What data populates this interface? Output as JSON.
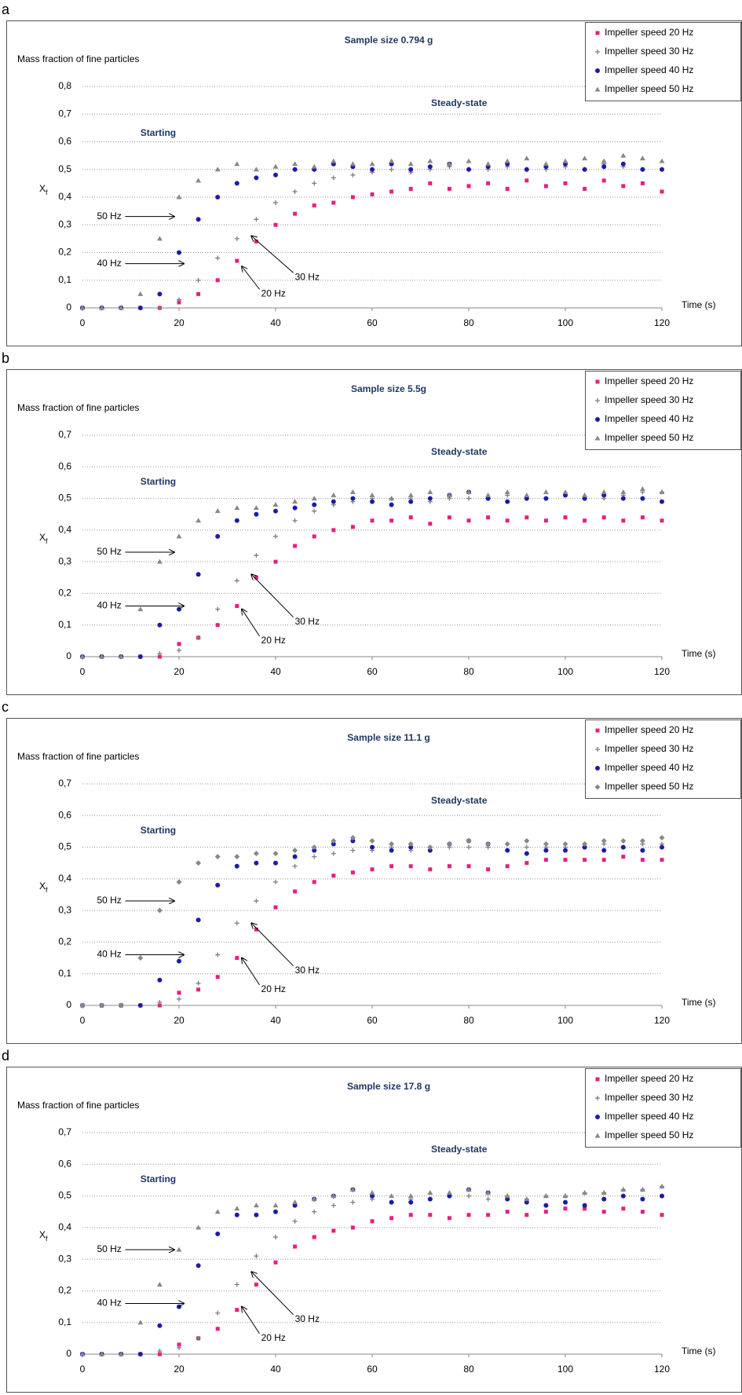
{
  "chart_data": [
    {
      "type": "scatter",
      "panel": "a",
      "title": "Sample size 0.794 g",
      "y_label": "Mass fraction of fine particles",
      "y_symbol": "X",
      "y_symbol_sub": "f",
      "x_label": "Time (s)",
      "annotations": [
        "Starting",
        "Steady-state",
        "50 Hz",
        "40 Hz",
        "30 Hz",
        "20 Hz"
      ],
      "xlim": [
        0,
        120
      ],
      "ylim": [
        0,
        0.8
      ],
      "xticks": [
        0,
        20,
        40,
        60,
        80,
        100,
        120
      ],
      "yticks": [
        0,
        {
          "value": 0.1,
          "label": "0,1"
        },
        {
          "value": 0.2,
          "label": "0,2"
        },
        {
          "value": 0.3,
          "label": "0,3"
        },
        {
          "value": 0.4,
          "label": "0,4"
        },
        {
          "value": 0.5,
          "label": "0,5"
        },
        {
          "value": 0.6,
          "label": "0,6"
        },
        {
          "value": 0.7,
          "label": "0,7"
        },
        {
          "value": 0.8,
          "label": "0,8"
        }
      ],
      "grid": true,
      "legend": "top-right",
      "x": [
        0,
        4,
        8,
        12,
        16,
        20,
        24,
        28,
        32,
        36,
        40,
        44,
        48,
        52,
        56,
        60,
        64,
        68,
        72,
        76,
        80,
        84,
        88,
        92,
        96,
        100,
        104,
        108,
        112,
        116,
        120
      ],
      "series": [
        {
          "name": "Impeller speed 20 Hz",
          "color": "#e3207f",
          "marker": "square",
          "values": [
            0,
            0,
            0,
            0,
            0,
            0.02,
            0.05,
            0.1,
            0.17,
            0.24,
            0.3,
            0.34,
            0.37,
            0.38,
            0.4,
            0.41,
            0.42,
            0.43,
            0.45,
            0.43,
            0.44,
            0.45,
            0.43,
            0.46,
            0.44,
            0.45,
            0.43,
            0.46,
            0.44,
            0.45,
            0.42
          ]
        },
        {
          "name": "Impeller speed 30 Hz",
          "color": "#7f7f7f",
          "marker": "plus",
          "values": [
            0,
            0,
            0,
            0,
            0,
            0.03,
            0.1,
            0.18,
            0.25,
            0.32,
            0.38,
            0.42,
            0.45,
            0.47,
            0.48,
            0.49,
            0.5,
            0.49,
            0.5,
            0.51,
            0.5,
            0.5,
            0.51,
            0.5,
            0.5,
            0.51,
            0.5,
            0.52,
            0.51,
            0.5,
            0.5
          ]
        },
        {
          "name": "Impeller speed 40 Hz",
          "color": "#1c1cab",
          "marker": "circle",
          "values": [
            0,
            0,
            0,
            0,
            0.05,
            0.2,
            0.32,
            0.4,
            0.45,
            0.47,
            0.48,
            0.5,
            0.5,
            0.52,
            0.51,
            0.5,
            0.52,
            0.5,
            0.51,
            0.52,
            0.5,
            0.51,
            0.52,
            0.5,
            0.51,
            0.52,
            0.5,
            0.51,
            0.52,
            0.5,
            0.5
          ]
        },
        {
          "name": "Impeller speed 50 Hz",
          "color": "#888888",
          "marker": "triangle",
          "values": [
            0,
            0,
            0,
            0.05,
            0.25,
            0.4,
            0.46,
            0.5,
            0.52,
            0.5,
            0.51,
            0.52,
            0.51,
            0.53,
            0.52,
            0.52,
            0.53,
            0.52,
            0.53,
            0.52,
            0.53,
            0.52,
            0.53,
            0.54,
            0.52,
            0.53,
            0.54,
            0.53,
            0.55,
            0.54,
            0.53
          ]
        }
      ]
    },
    {
      "type": "scatter",
      "panel": "b",
      "title": "Sample size 5.5g",
      "y_label": "Mass fraction of fine particles",
      "y_symbol": "X",
      "y_symbol_sub": "f",
      "x_label": "Time (s)",
      "annotations": [
        "Starting",
        "Steady-state",
        "50 Hz",
        "40 Hz",
        "30 Hz",
        "20 Hz"
      ],
      "xlim": [
        0,
        120
      ],
      "ylim": [
        0,
        0.7
      ],
      "xticks": [
        0,
        20,
        40,
        60,
        80,
        100,
        120
      ],
      "yticks": [
        0,
        {
          "value": 0.1,
          "label": "0,1"
        },
        {
          "value": 0.2,
          "label": "0,2"
        },
        {
          "value": 0.3,
          "label": "0,3"
        },
        {
          "value": 0.4,
          "label": "0,4"
        },
        {
          "value": 0.5,
          "label": "0,5"
        },
        {
          "value": 0.6,
          "label": "0,6"
        },
        {
          "value": 0.7,
          "label": "0,7"
        }
      ],
      "grid": true,
      "legend": "top-right",
      "x": [
        0,
        4,
        8,
        12,
        16,
        20,
        24,
        28,
        32,
        36,
        40,
        44,
        48,
        52,
        56,
        60,
        64,
        68,
        72,
        76,
        80,
        84,
        88,
        92,
        96,
        100,
        104,
        108,
        112,
        116,
        120
      ],
      "series": [
        {
          "name": "Impeller speed 20 Hz",
          "color": "#e3207f",
          "marker": "square",
          "values": [
            0,
            0,
            0,
            0,
            0,
            0.04,
            0.06,
            0.1,
            0.16,
            0.25,
            0.3,
            0.35,
            0.38,
            0.4,
            0.41,
            0.43,
            0.43,
            0.44,
            0.42,
            0.44,
            0.43,
            0.44,
            0.43,
            0.44,
            0.43,
            0.44,
            0.43,
            0.44,
            0.43,
            0.44,
            0.43
          ]
        },
        {
          "name": "Impeller speed 30 Hz",
          "color": "#7f7f7f",
          "marker": "plus",
          "values": [
            0,
            0,
            0,
            0,
            0.01,
            0.02,
            0.06,
            0.15,
            0.24,
            0.32,
            0.38,
            0.43,
            0.46,
            0.48,
            0.49,
            0.5,
            0.5,
            0.5,
            0.49,
            0.5,
            0.5,
            0.5,
            0.51,
            0.5,
            0.5,
            0.51,
            0.5,
            0.5,
            0.51,
            0.52,
            0.52
          ]
        },
        {
          "name": "Impeller speed 40 Hz",
          "color": "#1c1cab",
          "marker": "circle",
          "values": [
            0,
            0,
            0,
            0,
            0.1,
            0.15,
            0.26,
            0.38,
            0.43,
            0.45,
            0.46,
            0.47,
            0.48,
            0.49,
            0.5,
            0.49,
            0.48,
            0.49,
            0.5,
            0.51,
            0.52,
            0.5,
            0.49,
            0.5,
            0.5,
            0.51,
            0.5,
            0.51,
            0.5,
            0.5,
            0.49
          ]
        },
        {
          "name": "Impeller speed 50 Hz",
          "color": "#888888",
          "marker": "triangle",
          "values": [
            0,
            0,
            0,
            0.15,
            0.3,
            0.38,
            0.43,
            0.46,
            0.47,
            0.47,
            0.48,
            0.49,
            0.5,
            0.51,
            0.52,
            0.51,
            0.5,
            0.51,
            0.52,
            0.51,
            0.52,
            0.51,
            0.52,
            0.51,
            0.52,
            0.52,
            0.51,
            0.52,
            0.52,
            0.53,
            0.52
          ]
        }
      ]
    },
    {
      "type": "scatter",
      "panel": "c",
      "title": "Sample size 11.1 g",
      "y_label": "Mass fraction of fine particles",
      "y_symbol": "X",
      "y_symbol_sub": "f",
      "x_label": "Time (s)",
      "annotations": [
        "Starting",
        "Steady-state",
        "50 Hz",
        "40 Hz",
        "30 Hz",
        "20 Hz"
      ],
      "xlim": [
        0,
        120
      ],
      "ylim": [
        0,
        0.7
      ],
      "xticks": [
        0,
        20,
        40,
        60,
        80,
        100,
        120
      ],
      "yticks": [
        0,
        {
          "value": 0.1,
          "label": "0,1"
        },
        {
          "value": 0.2,
          "label": "0,2"
        },
        {
          "value": 0.3,
          "label": "0,3"
        },
        {
          "value": 0.4,
          "label": "0,4"
        },
        {
          "value": 0.5,
          "label": "0,5"
        },
        {
          "value": 0.6,
          "label": "0,6"
        },
        {
          "value": 0.7,
          "label": "0,7"
        }
      ],
      "grid": true,
      "legend": "top-right",
      "x": [
        0,
        4,
        8,
        12,
        16,
        20,
        24,
        28,
        32,
        36,
        40,
        44,
        48,
        52,
        56,
        60,
        64,
        68,
        72,
        76,
        80,
        84,
        88,
        92,
        96,
        100,
        104,
        108,
        112,
        116,
        120
      ],
      "series": [
        {
          "name": "Impeller speed 20 Hz",
          "color": "#e3207f",
          "marker": "square",
          "values": [
            0,
            0,
            0,
            0,
            0,
            0.04,
            0.05,
            0.09,
            0.15,
            0.24,
            0.31,
            0.36,
            0.39,
            0.41,
            0.42,
            0.43,
            0.44,
            0.44,
            0.43,
            0.44,
            0.44,
            0.43,
            0.44,
            0.45,
            0.46,
            0.46,
            0.46,
            0.46,
            0.47,
            0.46,
            0.46
          ]
        },
        {
          "name": "Impeller speed 30 Hz",
          "color": "#7f7f7f",
          "marker": "plus",
          "values": [
            0,
            0,
            0,
            0,
            0.01,
            0.02,
            0.07,
            0.16,
            0.26,
            0.33,
            0.39,
            0.44,
            0.47,
            0.48,
            0.49,
            0.49,
            0.5,
            0.49,
            0.5,
            0.5,
            0.5,
            0.5,
            0.49,
            0.5,
            0.5,
            0.5,
            0.5,
            0.51,
            0.5,
            0.51,
            0.51
          ]
        },
        {
          "name": "Impeller speed 40 Hz",
          "color": "#1c1cab",
          "marker": "circle",
          "values": [
            0,
            0,
            0,
            0,
            0.08,
            0.14,
            0.27,
            0.38,
            0.44,
            0.45,
            0.45,
            0.47,
            0.49,
            0.51,
            0.52,
            0.5,
            0.49,
            0.5,
            0.49,
            0.51,
            0.52,
            0.51,
            0.49,
            0.48,
            0.49,
            0.49,
            0.5,
            0.49,
            0.5,
            0.49,
            0.5
          ]
        },
        {
          "name": "Impeller speed 50 Hz",
          "color": "#888888",
          "marker": "diamond",
          "values": [
            0,
            0,
            0,
            0.15,
            0.3,
            0.39,
            0.45,
            0.47,
            0.47,
            0.48,
            0.48,
            0.49,
            0.5,
            0.52,
            0.53,
            0.52,
            0.51,
            0.51,
            0.5,
            0.51,
            0.52,
            0.51,
            0.51,
            0.52,
            0.51,
            0.51,
            0.51,
            0.52,
            0.52,
            0.52,
            0.53
          ]
        }
      ]
    },
    {
      "type": "scatter",
      "panel": "d",
      "title": "Sample size 17.8 g",
      "y_label": "Mass fraction of fine particles",
      "y_symbol": "X",
      "y_symbol_sub": "f",
      "x_label": "Time (s)",
      "annotations": [
        "Starting",
        "Steady-state",
        "50 Hz",
        "40 Hz",
        "30 Hz",
        "20 Hz"
      ],
      "xlim": [
        0,
        120
      ],
      "ylim": [
        0,
        0.7
      ],
      "xticks": [
        0,
        20,
        40,
        60,
        80,
        100,
        120
      ],
      "yticks": [
        0,
        {
          "value": 0.1,
          "label": "0,1"
        },
        {
          "value": 0.2,
          "label": "0,2"
        },
        {
          "value": 0.3,
          "label": "0,3"
        },
        {
          "value": 0.4,
          "label": "0,4"
        },
        {
          "value": 0.5,
          "label": "0,5"
        },
        {
          "value": 0.6,
          "label": "0,6"
        },
        {
          "value": 0.7,
          "label": "0,7"
        }
      ],
      "grid": true,
      "legend": "top-right",
      "x": [
        0,
        4,
        8,
        12,
        16,
        20,
        24,
        28,
        32,
        36,
        40,
        44,
        48,
        52,
        56,
        60,
        64,
        68,
        72,
        76,
        80,
        84,
        88,
        92,
        96,
        100,
        104,
        108,
        112,
        116,
        120
      ],
      "series": [
        {
          "name": "Impeller speed 20 Hz",
          "color": "#e3207f",
          "marker": "square",
          "values": [
            0,
            0,
            0,
            0,
            0,
            0.03,
            0.05,
            0.08,
            0.14,
            0.22,
            0.29,
            0.34,
            0.37,
            0.39,
            0.4,
            0.42,
            0.43,
            0.44,
            0.44,
            0.43,
            0.44,
            0.44,
            0.45,
            0.44,
            0.45,
            0.46,
            0.46,
            0.45,
            0.46,
            0.45,
            0.44
          ]
        },
        {
          "name": "Impeller speed 30 Hz",
          "color": "#7f7f7f",
          "marker": "plus",
          "values": [
            0,
            0,
            0,
            0,
            0.01,
            0.02,
            0.05,
            0.13,
            0.22,
            0.31,
            0.37,
            0.42,
            0.45,
            0.47,
            0.48,
            0.49,
            0.48,
            0.49,
            0.49,
            0.5,
            0.5,
            0.49,
            0.5,
            0.49,
            0.5,
            0.5,
            0.51,
            0.51,
            0.52,
            0.52,
            0.53
          ]
        },
        {
          "name": "Impeller speed 40 Hz",
          "color": "#1c1cab",
          "marker": "circle",
          "values": [
            0,
            0,
            0,
            0,
            0.09,
            0.15,
            0.28,
            0.38,
            0.44,
            0.44,
            0.45,
            0.47,
            0.49,
            0.5,
            0.52,
            0.5,
            0.48,
            0.48,
            0.49,
            0.5,
            0.52,
            0.51,
            0.49,
            0.48,
            0.47,
            0.48,
            0.47,
            0.49,
            0.5,
            0.49,
            0.5
          ]
        },
        {
          "name": "Impeller speed 50 Hz",
          "color": "#888888",
          "marker": "triangle",
          "values": [
            0,
            0,
            0,
            0.1,
            0.22,
            0.33,
            0.4,
            0.45,
            0.46,
            0.47,
            0.47,
            0.48,
            0.49,
            0.5,
            0.52,
            0.51,
            0.5,
            0.5,
            0.51,
            0.51,
            0.52,
            0.51,
            0.5,
            0.49,
            0.5,
            0.5,
            0.51,
            0.51,
            0.52,
            0.52,
            0.53
          ]
        }
      ]
    }
  ]
}
